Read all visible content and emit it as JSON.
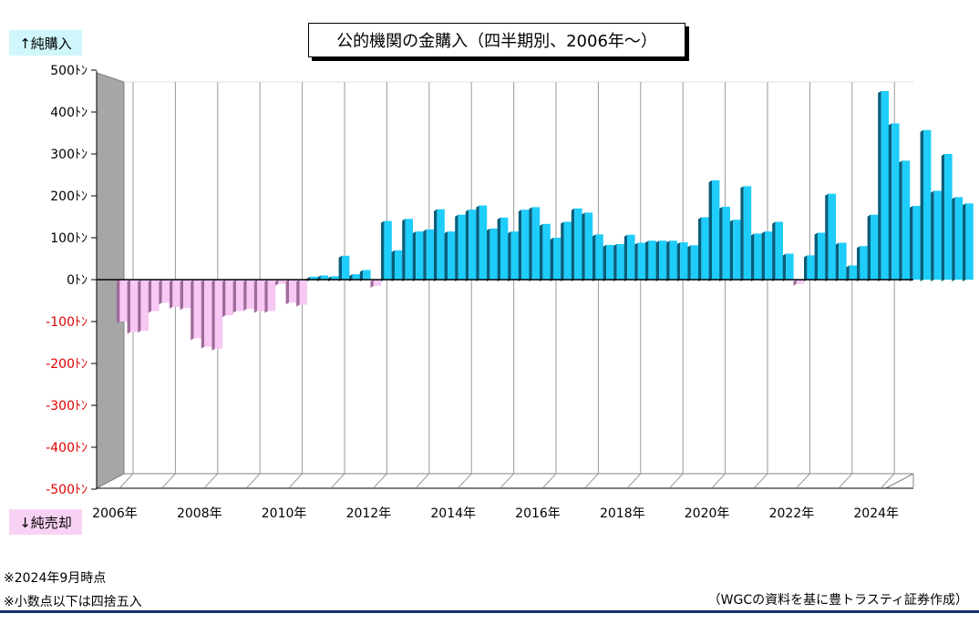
{
  "chart_data": {
    "type": "bar",
    "title": "公的機関の金購入（四半期別、2006年～）",
    "unit": "ﾄﾝ",
    "ylim": [
      -500,
      500
    ],
    "yticks": [
      500,
      400,
      300,
      200,
      100,
      0,
      -100,
      -200,
      -300,
      -400,
      -500
    ],
    "ytick_labels": [
      "500ﾄﾝ",
      "400ﾄﾝ",
      "300ﾄﾝ",
      "200ﾄﾝ",
      "100ﾄﾝ",
      "0ﾄﾝ",
      "-100ﾄﾝ",
      "-200ﾄﾝ",
      "-300ﾄﾝ",
      "-400ﾄﾝ",
      "-500ﾄﾝ"
    ],
    "xtick_labels": [
      "2006年",
      "2008年",
      "2010年",
      "2012年",
      "2014年",
      "2016年",
      "2018年",
      "2020年",
      "2022年",
      "2024年"
    ],
    "x_start": "2006-Q1",
    "frequency": "quarterly",
    "grid": true,
    "values": [
      -100,
      -125,
      -122,
      -75,
      -55,
      -65,
      -68,
      -140,
      -160,
      -165,
      -85,
      -75,
      -70,
      -75,
      -75,
      -10,
      -55,
      -60,
      7,
      10,
      8,
      57,
      13,
      23,
      -15,
      140,
      70,
      145,
      115,
      120,
      168,
      115,
      155,
      167,
      177,
      122,
      148,
      115,
      167,
      173,
      133,
      100,
      138,
      170,
      160,
      108,
      83,
      85,
      107,
      88,
      93,
      93,
      93,
      89,
      82,
      149,
      237,
      174,
      143,
      223,
      110,
      115,
      138,
      62,
      -10,
      58,
      112,
      205,
      88,
      34,
      80,
      155,
      450,
      373,
      284,
      176,
      357,
      212,
      300,
      197,
      182
    ]
  },
  "legend": {
    "buy": "↑純購入",
    "sell": "↓純売却"
  },
  "notes": {
    "date": "※2024年9月時点",
    "rounding": "※小数点以下は四捨五入",
    "source": "（WGCの資料を基に豊トラスティ証券作成）"
  },
  "colors": {
    "positive_front": "#1ecdfa",
    "positive_side": "#0a5e7a",
    "negative_front": "#f8c8f4",
    "negative_side": "#a06a9b",
    "tick_positive": "#000000",
    "tick_negative": "#e00000",
    "rule": "#17306b"
  }
}
